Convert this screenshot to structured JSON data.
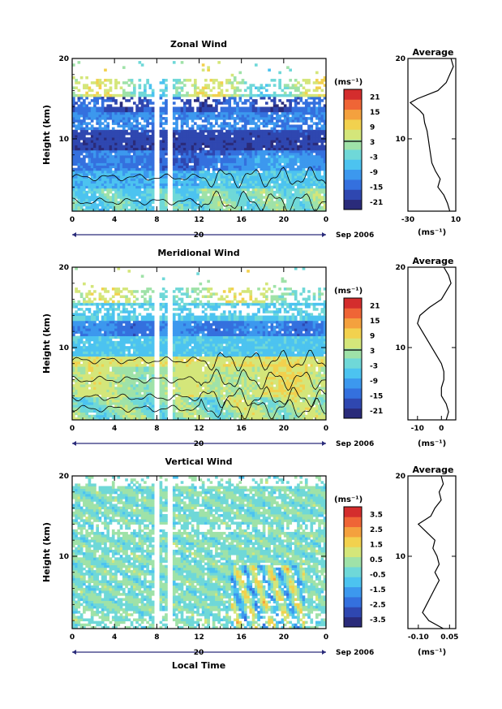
{
  "figure": {
    "xlabel": "Local Time",
    "ylabel": "Height (km)",
    "date_label": "Sep 2006",
    "day_label": "20",
    "profile_title": "Average",
    "colorbar_unit": "(ms⁻¹)",
    "profile_unit": "(ms⁻¹)"
  },
  "chart_data": [
    {
      "type": "heatmap",
      "id": "zonal",
      "title": "Zonal Wind",
      "xlim": [
        0,
        24
      ],
      "ylim": [
        1,
        20
      ],
      "xticks": [
        "0",
        "4",
        "8",
        "12",
        "16",
        "20",
        "0"
      ],
      "yticks": [
        "10",
        "20"
      ],
      "colorbar_ticks": [
        "21",
        "15",
        "9",
        "3",
        "-3",
        "-9",
        "-15",
        "-21"
      ],
      "colorbar_range": [
        -24,
        24
      ],
      "profile": {
        "title": "Average",
        "xlim": [
          -30,
          10
        ],
        "xticks": [
          "-30",
          "10"
        ],
        "height": [
          1.0,
          2.0,
          3.0,
          4.0,
          5.0,
          6.0,
          7.0,
          8.0,
          9.0,
          10.0,
          11.0,
          12.0,
          13.0,
          13.5,
          14.0,
          14.5,
          15.0,
          16.0,
          17.0,
          18.0,
          19.0,
          20.0
        ],
        "values": [
          5,
          3,
          0,
          -5,
          -3,
          -7,
          -10,
          -11,
          -12,
          -13,
          -14,
          -16,
          -17,
          -20,
          -24,
          -28,
          -22,
          -5,
          2,
          5,
          8,
          6
        ]
      }
    },
    {
      "type": "heatmap",
      "id": "meridional",
      "title": "Meridional Wind",
      "xlim": [
        0,
        24
      ],
      "ylim": [
        1,
        20
      ],
      "xticks": [
        "0",
        "4",
        "8",
        "12",
        "16",
        "20",
        "0"
      ],
      "yticks": [
        "10",
        "20"
      ],
      "colorbar_ticks": [
        "21",
        "15",
        "9",
        "3",
        "-3",
        "-9",
        "-15",
        "-21"
      ],
      "colorbar_range": [
        -24,
        24
      ],
      "profile": {
        "title": "Average",
        "xlim": [
          -14,
          6
        ],
        "xticks": [
          "-10",
          "0"
        ],
        "height": [
          1.0,
          2.0,
          3.0,
          4.0,
          5.0,
          6.0,
          7.0,
          8.0,
          9.0,
          10.0,
          11.0,
          12.0,
          13.0,
          14.0,
          15.0,
          16.0,
          17.0,
          18.0,
          19.0,
          20.0
        ],
        "values": [
          2,
          3,
          2,
          0,
          0,
          1,
          1,
          0,
          -2,
          -4,
          -6,
          -8,
          -10,
          -9,
          -5,
          0,
          2,
          4,
          3,
          1
        ]
      }
    },
    {
      "type": "heatmap",
      "id": "vertical",
      "title": "Vertical Wind",
      "xlim": [
        0,
        24
      ],
      "ylim": [
        1,
        20
      ],
      "xticks": [
        "0",
        "4",
        "8",
        "12",
        "16",
        "20",
        "0"
      ],
      "yticks": [
        "10",
        "20"
      ],
      "colorbar_ticks": [
        "3.5",
        "2.5",
        "1.5",
        "0.5",
        "-0.5",
        "-1.5",
        "-2.5",
        "-3.5"
      ],
      "colorbar_range": [
        -4,
        4
      ],
      "profile": {
        "title": "Average",
        "xlim": [
          -0.15,
          0.08
        ],
        "xticks": [
          "-0.10",
          "0.05"
        ],
        "height": [
          1.0,
          2.0,
          3.0,
          4.0,
          5.0,
          6.0,
          7.0,
          8.0,
          9.0,
          10.0,
          11.0,
          12.0,
          13.0,
          14.0,
          15.0,
          16.0,
          17.0,
          18.0,
          19.0,
          20.0
        ],
        "values": [
          0.02,
          -0.05,
          -0.08,
          -0.06,
          -0.04,
          -0.02,
          0.0,
          -0.02,
          0.0,
          -0.01,
          -0.03,
          -0.02,
          -0.06,
          -0.1,
          -0.04,
          -0.02,
          0.01,
          0.0,
          0.02,
          0.01
        ]
      }
    }
  ],
  "colors": {
    "scale": [
      "#2a2b7a",
      "#2f47b0",
      "#3470de",
      "#3c98ee",
      "#4cc3f0",
      "#6fd8d8",
      "#9fe2a8",
      "#d4e67a",
      "#f2d14e",
      "#f4a13e",
      "#ef6536",
      "#d42d2d"
    ]
  }
}
